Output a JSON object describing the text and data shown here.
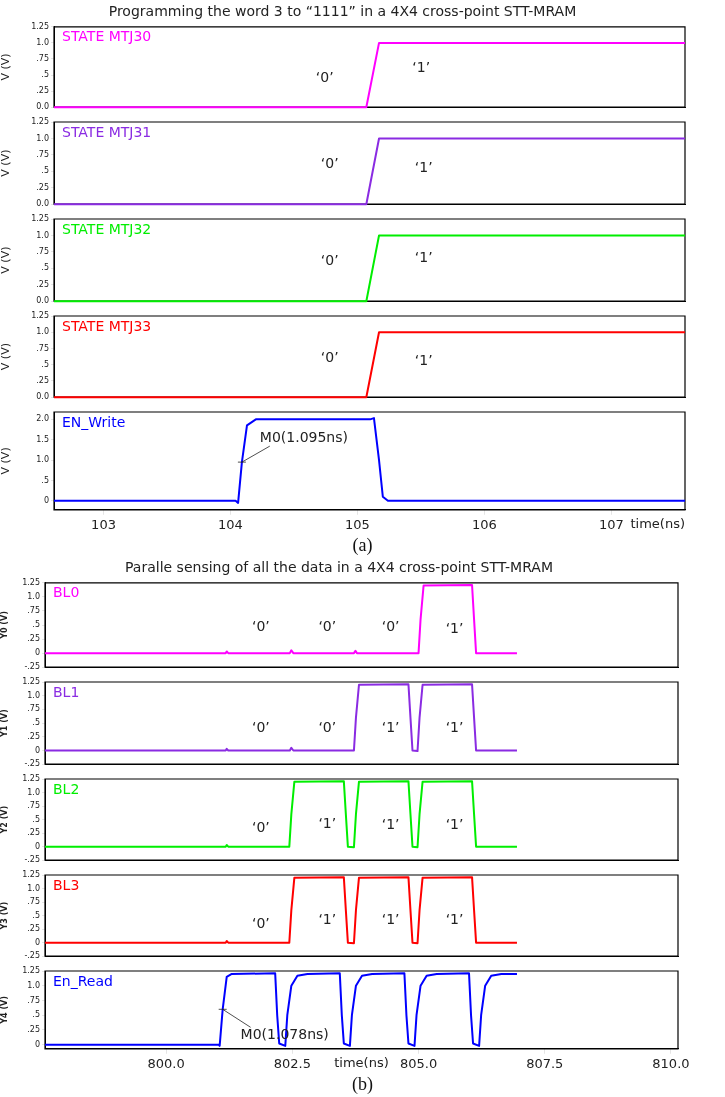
{
  "chart_data": [
    {
      "type": "line",
      "title": "Programming the word 3 to “1111” in a 4X4 cross-point STT-MRAM",
      "ylabel": "V (V)",
      "xlim": [
        102.61,
        107.58
      ],
      "ylim": [
        0,
        1.25
      ],
      "yticks": [
        {
          "value": 0,
          "label": "0.0"
        },
        {
          "value": 0.25,
          "label": ".25"
        },
        {
          "value": 0.5,
          "label": ".5"
        },
        {
          "value": 0.75,
          "label": ".75"
        },
        {
          "value": 1,
          "label": "1.0"
        },
        1.25
      ],
      "tick_labels": "y",
      "series": [
        {
          "name": "STATE MTJ30",
          "color": "#ff00ff",
          "x": [
            102.61,
            105.07,
            105.17,
            107.58
          ],
          "values": [
            0,
            0,
            1,
            1
          ]
        }
      ],
      "annotations": [
        "‘0’",
        "‘1’"
      ]
    },
    {
      "type": "line",
      "ylabel": "V (V)",
      "xlim": [
        102.61,
        107.58
      ],
      "ylim": [
        0,
        1.25
      ],
      "yticks": [
        {
          "value": 0,
          "label": "0.0"
        },
        {
          "value": 0.25,
          "label": ".25"
        },
        {
          "value": 0.5,
          "label": ".5"
        },
        {
          "value": 0.75,
          "label": ".75"
        },
        {
          "value": 1,
          "label": "1.0"
        },
        1.25
      ],
      "tick_labels": "y",
      "series": [
        {
          "name": "STATE MTJ31",
          "color": "#8a2be2",
          "x": [
            102.61,
            105.07,
            105.17,
            107.58
          ],
          "values": [
            0,
            0,
            1,
            1
          ]
        }
      ],
      "annotations": [
        "‘0’",
        "‘1’"
      ]
    },
    {
      "type": "line",
      "ylabel": "V (V)",
      "xlim": [
        102.61,
        107.58
      ],
      "ylim": [
        0,
        1.25
      ],
      "yticks": [
        {
          "value": 0,
          "label": "0.0"
        },
        {
          "value": 0.25,
          "label": ".25"
        },
        {
          "value": 0.5,
          "label": ".5"
        },
        {
          "value": 0.75,
          "label": ".75"
        },
        {
          "value": 1,
          "label": "1.0"
        },
        1.25
      ],
      "tick_labels": "y",
      "series": [
        {
          "name": "STATE MTJ32",
          "color": "#00ee00",
          "x": [
            102.61,
            105.07,
            105.17,
            107.58
          ],
          "values": [
            0,
            0,
            1,
            1
          ]
        }
      ],
      "annotations": [
        "‘0’",
        "‘1’"
      ]
    },
    {
      "type": "line",
      "ylabel": "V (V)",
      "xlim": [
        102.61,
        107.58
      ],
      "ylim": [
        0,
        1.25
      ],
      "yticks": [
        {
          "value": 0,
          "label": "0.0"
        },
        {
          "value": 0.25,
          "label": ".25"
        },
        {
          "value": 0.5,
          "label": ".5"
        },
        {
          "value": 0.75,
          "label": ".75"
        },
        {
          "value": 1,
          "label": "1.0"
        },
        1.25
      ],
      "tick_labels": "y",
      "series": [
        {
          "name": "STATE MTJ33",
          "color": "#ff0000",
          "x": [
            102.61,
            105.07,
            105.17,
            107.58
          ],
          "values": [
            0,
            0,
            1,
            1
          ]
        }
      ],
      "annotations": [
        "‘0’",
        "‘1’"
      ]
    },
    {
      "type": "line",
      "ylabel": "V (V)",
      "xlabel": "time(ns)",
      "xlim": [
        102.61,
        107.58
      ],
      "ylim": [
        -0.22,
        2.18
      ],
      "xticks": [
        103,
        104,
        105,
        106,
        107
      ],
      "yticks": [
        0,
        {
          "value": 0.5,
          "label": ".5"
        },
        {
          "value": 1,
          "label": "1.0"
        },
        1.5,
        {
          "value": 2,
          "label": "2.0"
        }
      ],
      "series": [
        {
          "name": "EN_Write",
          "color": "#0000ff",
          "x": [
            102.61,
            104.04,
            104.06,
            104.09,
            104.13,
            104.2,
            105.1,
            105.13,
            105.17,
            105.2,
            105.24,
            107.58
          ],
          "values": [
            0,
            0,
            -0.05,
            0.95,
            1.85,
            2,
            2,
            2.03,
            1,
            0.1,
            0,
            0
          ]
        }
      ],
      "annotations": [
        {
          "text": "M0(1.095ns)",
          "x": 104.09,
          "y": 0.95
        },
        "(a)"
      ]
    },
    {
      "type": "line",
      "title": "Paralle sensing of all the data in a 4X4 cross-point STT-MRAM",
      "ylabel": "Y0 (V)",
      "xlim": [
        797.6,
        810.14
      ],
      "ylim": [
        -0.25,
        1.25
      ],
      "yticks": [
        {
          "value": -0.25,
          "label": "-.25"
        },
        0,
        {
          "value": 0.25,
          "label": ".25"
        },
        {
          "value": 0.5,
          "label": ".5"
        },
        {
          "value": 0.75,
          "label": ".75"
        },
        {
          "value": 1,
          "label": "1.0"
        },
        1.25
      ],
      "tick_labels": "y",
      "series": [
        {
          "name": "BL0",
          "color": "#ff00ff",
          "x": [
            797.6,
            801.18,
            801.2,
            801.23,
            802.45,
            802.48,
            802.52,
            803.72,
            803.75,
            803.78,
            805,
            805.04,
            805.1,
            806.06,
            806.1,
            806.14,
            806.95
          ],
          "values": [
            0,
            0,
            0.03,
            0,
            0,
            0.05,
            0,
            0,
            0.04,
            0,
            0,
            0.6,
            1.2,
            1.21,
            0.6,
            0,
            0
          ]
        }
      ],
      "annotations": [
        "‘0’",
        "‘0’",
        "‘0’",
        "‘1’"
      ]
    },
    {
      "type": "line",
      "ylabel": "Y1 (V)",
      "xlim": [
        797.6,
        810.14
      ],
      "ylim": [
        -0.25,
        1.25
      ],
      "yticks": [
        {
          "value": -0.25,
          "label": "-.25"
        },
        0,
        {
          "value": 0.25,
          "label": ".25"
        },
        {
          "value": 0.5,
          "label": ".5"
        },
        {
          "value": 0.75,
          "label": ".75"
        },
        {
          "value": 1,
          "label": "1.0"
        },
        1.25
      ],
      "tick_labels": "y",
      "series": [
        {
          "name": "BL1",
          "color": "#8a2be2",
          "x": [
            797.6,
            801.18,
            801.2,
            801.23,
            802.45,
            802.48,
            802.52,
            803.72,
            803.76,
            803.82,
            804.8,
            804.84,
            804.88,
            804.98,
            805.02,
            805.08,
            806.06,
            806.1,
            806.14,
            806.95
          ],
          "values": [
            0,
            0,
            0.03,
            0,
            0,
            0.05,
            0,
            0,
            0.6,
            1.2,
            1.21,
            0.6,
            0,
            -0.01,
            0.6,
            1.2,
            1.21,
            0.6,
            0,
            0
          ]
        }
      ],
      "annotations": [
        "‘0’",
        "‘0’",
        "‘1’",
        "‘1’"
      ]
    },
    {
      "type": "line",
      "ylabel": "Y2 (V)",
      "xlim": [
        797.6,
        810.14
      ],
      "ylim": [
        -0.25,
        1.25
      ],
      "yticks": [
        {
          "value": -0.25,
          "label": "-.25"
        },
        0,
        {
          "value": 0.25,
          "label": ".25"
        },
        {
          "value": 0.5,
          "label": ".5"
        },
        {
          "value": 0.75,
          "label": ".75"
        },
        {
          "value": 1,
          "label": "1.0"
        },
        1.25
      ],
      "tick_labels": "y",
      "series": [
        {
          "name": "BL2",
          "color": "#00ee00",
          "x": [
            797.6,
            801.18,
            801.2,
            801.23,
            802.44,
            802.48,
            802.54,
            803.52,
            803.56,
            803.6,
            803.72,
            803.76,
            803.82,
            804.8,
            804.84,
            804.88,
            804.98,
            805.02,
            805.08,
            806.06,
            806.1,
            806.14,
            806.95
          ],
          "values": [
            0,
            0,
            0.03,
            0,
            0,
            0.6,
            1.2,
            1.21,
            0.6,
            0,
            -0.01,
            0.6,
            1.2,
            1.21,
            0.6,
            0,
            -0.01,
            0.6,
            1.2,
            1.21,
            0.6,
            0,
            0
          ]
        }
      ],
      "annotations": [
        "‘0’",
        "‘1’",
        "‘1’",
        "‘1’"
      ]
    },
    {
      "type": "line",
      "ylabel": "Y3 (V)",
      "xlim": [
        797.6,
        810.14
      ],
      "ylim": [
        -0.25,
        1.25
      ],
      "yticks": [
        {
          "value": -0.25,
          "label": "-.25"
        },
        0,
        {
          "value": 0.25,
          "label": ".25"
        },
        {
          "value": 0.5,
          "label": ".5"
        },
        {
          "value": 0.75,
          "label": ".75"
        },
        {
          "value": 1,
          "label": "1.0"
        },
        1.25
      ],
      "tick_labels": "y",
      "series": [
        {
          "name": "BL3",
          "color": "#ff0000",
          "x": [
            797.6,
            801.18,
            801.2,
            801.23,
            802.44,
            802.48,
            802.54,
            803.52,
            803.56,
            803.6,
            803.72,
            803.76,
            803.82,
            804.8,
            804.84,
            804.88,
            804.98,
            805.02,
            805.08,
            806.06,
            806.1,
            806.14,
            806.95
          ],
          "values": [
            0,
            0,
            0.03,
            0,
            0,
            0.6,
            1.2,
            1.21,
            0.6,
            0,
            -0.01,
            0.6,
            1.2,
            1.21,
            0.6,
            0,
            -0.01,
            0.6,
            1.2,
            1.21,
            0.6,
            0,
            0
          ]
        }
      ],
      "annotations": [
        "‘0’",
        "‘1’",
        "‘1’",
        "‘1’"
      ]
    },
    {
      "type": "line",
      "ylabel": "Y4 (V)",
      "xlabel": "time(ns)",
      "xlim": [
        797.6,
        810.14
      ],
      "ylim": [
        -0.07,
        1.25
      ],
      "xticks": [
        {
          "value": 800,
          "label": "800.0"
        },
        802.5,
        {
          "value": 805,
          "label": "805.0"
        },
        807.5,
        {
          "value": 810,
          "label": "810.0"
        }
      ],
      "yticks": [
        0,
        {
          "value": 0.25,
          "label": ".25"
        },
        {
          "value": 0.5,
          "label": ".5"
        },
        {
          "value": 0.75,
          "label": ".75"
        },
        {
          "value": 1,
          "label": "1.0"
        },
        1.25
      ],
      "series": [
        {
          "name": "En_Read",
          "color": "#0000ff",
          "x": [
            797.6,
            801.04,
            801.06,
            801.12,
            801.2,
            801.3,
            802.16,
            802.2,
            802.24,
            802.36,
            802.4,
            802.48,
            802.6,
            802.8,
            803.44,
            803.48,
            803.52,
            803.64,
            803.68,
            803.76,
            803.88,
            804.08,
            804.72,
            804.76,
            804.8,
            804.92,
            804.96,
            805.04,
            805.16,
            805.36,
            806,
            806.04,
            806.08,
            806.2,
            806.24,
            806.32,
            806.44,
            806.64,
            806.95
          ],
          "values": [
            0,
            0,
            -0.02,
            0.6,
            1.15,
            1.2,
            1.21,
            0.5,
            0.02,
            -0.02,
            0.5,
            1,
            1.17,
            1.2,
            1.21,
            0.5,
            0.02,
            -0.02,
            0.5,
            1,
            1.17,
            1.2,
            1.21,
            0.5,
            0.02,
            -0.02,
            0.5,
            1,
            1.17,
            1.2,
            1.21,
            0.5,
            0.02,
            -0.02,
            0.5,
            1,
            1.17,
            1.2,
            1.2
          ]
        }
      ],
      "annotations": [
        {
          "text": "M0(1.078ns)",
          "x": 801.12,
          "y": 0.6
        },
        "(b)"
      ]
    }
  ]
}
